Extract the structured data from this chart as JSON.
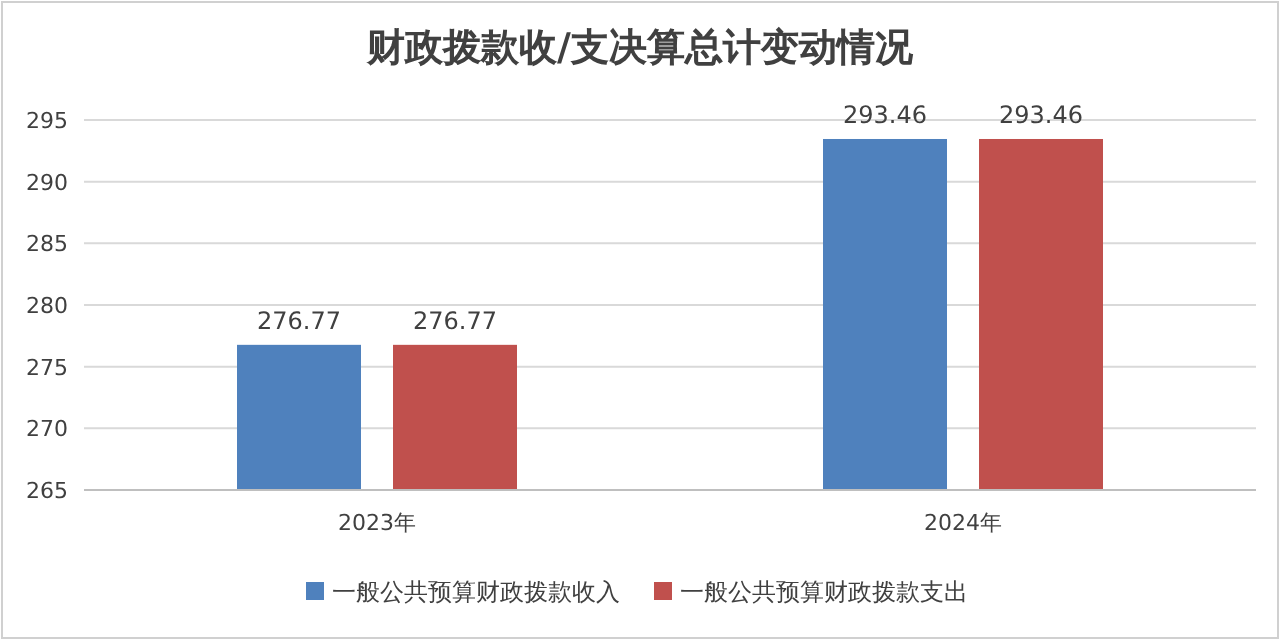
{
  "chart_data": {
    "type": "bar",
    "title": "财政拨款收/支决算总计变动情况",
    "categories": [
      "2023年",
      "2024年"
    ],
    "series": [
      {
        "name": "一般公共预算财政拨款收入",
        "color": "#4f81bd",
        "values": [
          276.77,
          293.46
        ]
      },
      {
        "name": "一般公共预算财政拨款支出",
        "color": "#c0504d",
        "values": [
          276.77,
          293.46
        ]
      }
    ],
    "ylim": [
      265,
      295
    ],
    "yticks": [
      265,
      270,
      275,
      280,
      285,
      290,
      295
    ],
    "grid": "y",
    "legend": "bottom",
    "data_labels": true
  }
}
